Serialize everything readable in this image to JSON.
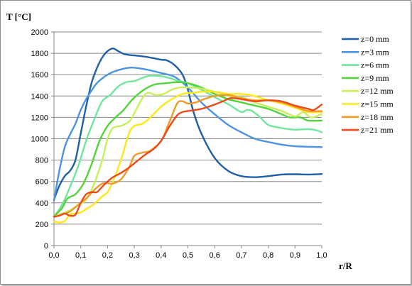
{
  "chart_data": {
    "type": "line",
    "ylabel": "T [°C]",
    "xlabel": "r/R",
    "xlim": [
      0,
      1
    ],
    "ylim": [
      0,
      2000
    ],
    "x_ticks": [
      "0,0",
      "0,1",
      "0,2",
      "0,3",
      "0,4",
      "0,5",
      "0,6",
      "0,7",
      "0,8",
      "0,9",
      "1,0"
    ],
    "y_ticks": [
      "0",
      "200",
      "400",
      "600",
      "800",
      "1000",
      "1200",
      "1400",
      "1600",
      "1800",
      "2000"
    ],
    "grid": "horizontal",
    "legend": "right",
    "series": [
      {
        "name": "z=0 mm",
        "color": "#1f5fa8",
        "points": [
          [
            0,
            430
          ],
          [
            0.02,
            560
          ],
          [
            0.04,
            650
          ],
          [
            0.06,
            700
          ],
          [
            0.08,
            800
          ],
          [
            0.1,
            1050
          ],
          [
            0.12,
            1300
          ],
          [
            0.14,
            1520
          ],
          [
            0.16,
            1660
          ],
          [
            0.18,
            1760
          ],
          [
            0.2,
            1820
          ],
          [
            0.22,
            1845
          ],
          [
            0.24,
            1820
          ],
          [
            0.26,
            1795
          ],
          [
            0.28,
            1785
          ],
          [
            0.3,
            1780
          ],
          [
            0.35,
            1765
          ],
          [
            0.4,
            1740
          ],
          [
            0.42,
            1735
          ],
          [
            0.45,
            1690
          ],
          [
            0.48,
            1600
          ],
          [
            0.5,
            1460
          ],
          [
            0.52,
            1260
          ],
          [
            0.55,
            1050
          ],
          [
            0.6,
            820
          ],
          [
            0.65,
            700
          ],
          [
            0.7,
            650
          ],
          [
            0.75,
            640
          ],
          [
            0.8,
            650
          ],
          [
            0.85,
            665
          ],
          [
            0.9,
            668
          ],
          [
            0.95,
            665
          ],
          [
            1.0,
            670
          ]
        ]
      },
      {
        "name": "z=3 mm",
        "color": "#4c94e0",
        "points": [
          [
            0,
            420
          ],
          [
            0.02,
            700
          ],
          [
            0.04,
            920
          ],
          [
            0.06,
            1040
          ],
          [
            0.08,
            1140
          ],
          [
            0.1,
            1270
          ],
          [
            0.12,
            1370
          ],
          [
            0.14,
            1450
          ],
          [
            0.16,
            1520
          ],
          [
            0.18,
            1565
          ],
          [
            0.2,
            1600
          ],
          [
            0.22,
            1625
          ],
          [
            0.25,
            1650
          ],
          [
            0.28,
            1665
          ],
          [
            0.3,
            1665
          ],
          [
            0.33,
            1655
          ],
          [
            0.36,
            1640
          ],
          [
            0.4,
            1615
          ],
          [
            0.45,
            1580
          ],
          [
            0.5,
            1480
          ],
          [
            0.55,
            1340
          ],
          [
            0.6,
            1230
          ],
          [
            0.65,
            1130
          ],
          [
            0.7,
            1060
          ],
          [
            0.75,
            1000
          ],
          [
            0.8,
            970
          ],
          [
            0.85,
            945
          ],
          [
            0.9,
            930
          ],
          [
            0.95,
            925
          ],
          [
            1.0,
            922
          ]
        ]
      },
      {
        "name": "z=6 mm",
        "color": "#6fe79d",
        "points": [
          [
            0,
            270
          ],
          [
            0.03,
            380
          ],
          [
            0.06,
            550
          ],
          [
            0.09,
            740
          ],
          [
            0.12,
            980
          ],
          [
            0.15,
            1180
          ],
          [
            0.18,
            1350
          ],
          [
            0.21,
            1410
          ],
          [
            0.24,
            1490
          ],
          [
            0.27,
            1530
          ],
          [
            0.3,
            1540
          ],
          [
            0.33,
            1570
          ],
          [
            0.36,
            1590
          ],
          [
            0.4,
            1585
          ],
          [
            0.43,
            1570
          ],
          [
            0.46,
            1545
          ],
          [
            0.5,
            1520
          ],
          [
            0.55,
            1460
          ],
          [
            0.6,
            1390
          ],
          [
            0.63,
            1350
          ],
          [
            0.66,
            1310
          ],
          [
            0.7,
            1250
          ],
          [
            0.72,
            1270
          ],
          [
            0.74,
            1260
          ],
          [
            0.77,
            1200
          ],
          [
            0.8,
            1130
          ],
          [
            0.85,
            1100
          ],
          [
            0.9,
            1085
          ],
          [
            0.95,
            1090
          ],
          [
            0.98,
            1080
          ],
          [
            1.0,
            1060
          ]
        ]
      },
      {
        "name": "z=9 mm",
        "color": "#53d43b",
        "points": [
          [
            0,
            275
          ],
          [
            0.03,
            350
          ],
          [
            0.05,
            440
          ],
          [
            0.08,
            480
          ],
          [
            0.11,
            580
          ],
          [
            0.14,
            760
          ],
          [
            0.17,
            980
          ],
          [
            0.2,
            1120
          ],
          [
            0.23,
            1200
          ],
          [
            0.26,
            1270
          ],
          [
            0.29,
            1360
          ],
          [
            0.32,
            1430
          ],
          [
            0.35,
            1480
          ],
          [
            0.38,
            1510
          ],
          [
            0.42,
            1520
          ],
          [
            0.46,
            1530
          ],
          [
            0.5,
            1520
          ],
          [
            0.55,
            1480
          ],
          [
            0.6,
            1420
          ],
          [
            0.65,
            1370
          ],
          [
            0.7,
            1340
          ],
          [
            0.75,
            1310
          ],
          [
            0.8,
            1280
          ],
          [
            0.85,
            1230
          ],
          [
            0.88,
            1200
          ],
          [
            0.92,
            1200
          ],
          [
            0.95,
            1170
          ],
          [
            1.0,
            1170
          ]
        ]
      },
      {
        "name": "z=12 mm",
        "color": "#c8f05a",
        "points": [
          [
            0,
            270
          ],
          [
            0.03,
            300
          ],
          [
            0.06,
            330
          ],
          [
            0.09,
            380
          ],
          [
            0.12,
            430
          ],
          [
            0.15,
            580
          ],
          [
            0.18,
            800
          ],
          [
            0.2,
            1000
          ],
          [
            0.22,
            1100
          ],
          [
            0.25,
            1120
          ],
          [
            0.28,
            1160
          ],
          [
            0.3,
            1240
          ],
          [
            0.33,
            1380
          ],
          [
            0.35,
            1430
          ],
          [
            0.38,
            1410
          ],
          [
            0.41,
            1420
          ],
          [
            0.44,
            1460
          ],
          [
            0.47,
            1480
          ],
          [
            0.5,
            1480
          ],
          [
            0.55,
            1470
          ],
          [
            0.6,
            1440
          ],
          [
            0.65,
            1400
          ],
          [
            0.7,
            1390
          ],
          [
            0.75,
            1340
          ],
          [
            0.8,
            1300
          ],
          [
            0.85,
            1260
          ],
          [
            0.9,
            1210
          ],
          [
            0.93,
            1250
          ],
          [
            0.96,
            1200
          ],
          [
            1.0,
            1230
          ]
        ]
      },
      {
        "name": "z=15 mm",
        "color": "#ffe818",
        "points": [
          [
            0,
            225
          ],
          [
            0.02,
            215
          ],
          [
            0.04,
            230
          ],
          [
            0.06,
            290
          ],
          [
            0.08,
            300
          ],
          [
            0.1,
            310
          ],
          [
            0.12,
            340
          ],
          [
            0.15,
            390
          ],
          [
            0.18,
            460
          ],
          [
            0.2,
            500
          ],
          [
            0.22,
            600
          ],
          [
            0.25,
            800
          ],
          [
            0.28,
            1050
          ],
          [
            0.3,
            1120
          ],
          [
            0.33,
            1140
          ],
          [
            0.36,
            1200
          ],
          [
            0.4,
            1300
          ],
          [
            0.44,
            1370
          ],
          [
            0.48,
            1420
          ],
          [
            0.52,
            1430
          ],
          [
            0.55,
            1440
          ],
          [
            0.6,
            1440
          ],
          [
            0.65,
            1420
          ],
          [
            0.7,
            1420
          ],
          [
            0.75,
            1400
          ],
          [
            0.8,
            1360
          ],
          [
            0.85,
            1330
          ],
          [
            0.9,
            1290
          ],
          [
            0.95,
            1250
          ],
          [
            1.0,
            1250
          ]
        ]
      },
      {
        "name": "z=18 mm",
        "color": "#f09a2a",
        "points": [
          [
            0,
            270
          ],
          [
            0.03,
            290
          ],
          [
            0.06,
            320
          ],
          [
            0.09,
            380
          ],
          [
            0.12,
            440
          ],
          [
            0.15,
            520
          ],
          [
            0.18,
            580
          ],
          [
            0.2,
            585
          ],
          [
            0.22,
            580
          ],
          [
            0.25,
            620
          ],
          [
            0.28,
            730
          ],
          [
            0.3,
            840
          ],
          [
            0.33,
            870
          ],
          [
            0.36,
            890
          ],
          [
            0.4,
            980
          ],
          [
            0.43,
            1150
          ],
          [
            0.46,
            1330
          ],
          [
            0.48,
            1350
          ],
          [
            0.5,
            1330
          ],
          [
            0.53,
            1340
          ],
          [
            0.56,
            1370
          ],
          [
            0.6,
            1400
          ],
          [
            0.65,
            1410
          ],
          [
            0.7,
            1380
          ],
          [
            0.75,
            1360
          ],
          [
            0.8,
            1360
          ],
          [
            0.85,
            1340
          ],
          [
            0.9,
            1300
          ],
          [
            0.95,
            1260
          ],
          [
            1.0,
            1260
          ]
        ]
      },
      {
        "name": "z=21 mm",
        "color": "#ec4a18",
        "points": [
          [
            0,
            270
          ],
          [
            0.02,
            280
          ],
          [
            0.04,
            300
          ],
          [
            0.06,
            280
          ],
          [
            0.08,
            290
          ],
          [
            0.1,
            400
          ],
          [
            0.12,
            480
          ],
          [
            0.14,
            500
          ],
          [
            0.16,
            500
          ],
          [
            0.18,
            550
          ],
          [
            0.2,
            600
          ],
          [
            0.22,
            640
          ],
          [
            0.25,
            680
          ],
          [
            0.28,
            730
          ],
          [
            0.31,
            790
          ],
          [
            0.34,
            850
          ],
          [
            0.37,
            900
          ],
          [
            0.4,
            980
          ],
          [
            0.43,
            1110
          ],
          [
            0.46,
            1220
          ],
          [
            0.48,
            1250
          ],
          [
            0.5,
            1260
          ],
          [
            0.55,
            1280
          ],
          [
            0.6,
            1320
          ],
          [
            0.63,
            1350
          ],
          [
            0.66,
            1380
          ],
          [
            0.7,
            1370
          ],
          [
            0.75,
            1350
          ],
          [
            0.8,
            1360
          ],
          [
            0.85,
            1350
          ],
          [
            0.9,
            1310
          ],
          [
            0.95,
            1280
          ],
          [
            0.97,
            1270
          ],
          [
            1.0,
            1320
          ]
        ]
      }
    ]
  }
}
